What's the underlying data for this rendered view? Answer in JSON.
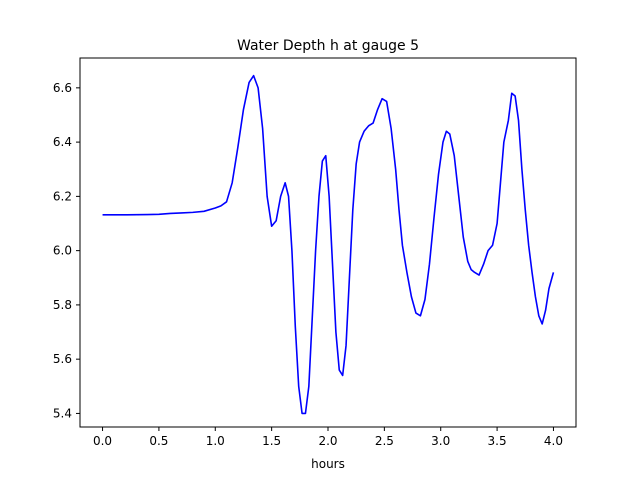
{
  "chart_data": {
    "type": "line",
    "title": "Water Depth h at gauge 5",
    "xlabel": "hours",
    "ylabel": "",
    "xlim": [
      -0.2,
      4.2
    ],
    "ylim": [
      5.35,
      6.71
    ],
    "xticks": [
      0.0,
      0.5,
      1.0,
      1.5,
      2.0,
      2.5,
      3.0,
      3.5,
      4.0
    ],
    "xtick_labels": [
      "0.0",
      "0.5",
      "1.0",
      "1.5",
      "2.0",
      "2.5",
      "3.0",
      "3.5",
      "4.0"
    ],
    "yticks": [
      5.4,
      5.6,
      5.8,
      6.0,
      6.2,
      6.4,
      6.6
    ],
    "ytick_labels": [
      "5.4",
      "5.6",
      "5.8",
      "6.0",
      "6.2",
      "6.4",
      "6.6"
    ],
    "grid": false,
    "legend": "none",
    "series": [
      {
        "color": "#0000ff",
        "x": [
          0.0,
          0.2,
          0.4,
          0.5,
          0.6,
          0.7,
          0.8,
          0.9,
          1.0,
          1.05,
          1.1,
          1.15,
          1.2,
          1.25,
          1.3,
          1.34,
          1.38,
          1.42,
          1.46,
          1.5,
          1.54,
          1.58,
          1.62,
          1.65,
          1.68,
          1.71,
          1.74,
          1.77,
          1.8,
          1.83,
          1.86,
          1.89,
          1.92,
          1.95,
          1.98,
          2.01,
          2.04,
          2.07,
          2.1,
          2.13,
          2.16,
          2.19,
          2.22,
          2.25,
          2.28,
          2.32,
          2.36,
          2.4,
          2.44,
          2.48,
          2.52,
          2.56,
          2.6,
          2.63,
          2.66,
          2.7,
          2.74,
          2.78,
          2.82,
          2.86,
          2.9,
          2.94,
          2.98,
          3.02,
          3.05,
          3.08,
          3.12,
          3.16,
          3.2,
          3.24,
          3.27,
          3.3,
          3.34,
          3.38,
          3.42,
          3.46,
          3.5,
          3.53,
          3.56,
          3.6,
          3.63,
          3.66,
          3.69,
          3.72,
          3.75,
          3.78,
          3.81,
          3.84,
          3.87,
          3.9,
          3.93,
          3.96,
          4.0
        ],
        "y": [
          6.132,
          6.132,
          6.133,
          6.134,
          6.137,
          6.139,
          6.141,
          6.145,
          6.157,
          6.165,
          6.18,
          6.25,
          6.38,
          6.52,
          6.62,
          6.645,
          6.6,
          6.45,
          6.2,
          6.09,
          6.11,
          6.2,
          6.25,
          6.2,
          6.0,
          5.72,
          5.5,
          5.4,
          5.4,
          5.5,
          5.75,
          6.0,
          6.2,
          6.33,
          6.35,
          6.2,
          5.95,
          5.7,
          5.56,
          5.54,
          5.65,
          5.9,
          6.15,
          6.32,
          6.4,
          6.44,
          6.46,
          6.47,
          6.52,
          6.56,
          6.55,
          6.45,
          6.3,
          6.15,
          6.02,
          5.92,
          5.83,
          5.77,
          5.76,
          5.82,
          5.95,
          6.12,
          6.28,
          6.4,
          6.44,
          6.43,
          6.35,
          6.2,
          6.05,
          5.96,
          5.93,
          5.92,
          5.91,
          5.95,
          6.0,
          6.02,
          6.1,
          6.25,
          6.4,
          6.48,
          6.58,
          6.57,
          6.48,
          6.3,
          6.15,
          6.02,
          5.92,
          5.83,
          5.76,
          5.73,
          5.78,
          5.86,
          5.92
        ]
      }
    ]
  }
}
